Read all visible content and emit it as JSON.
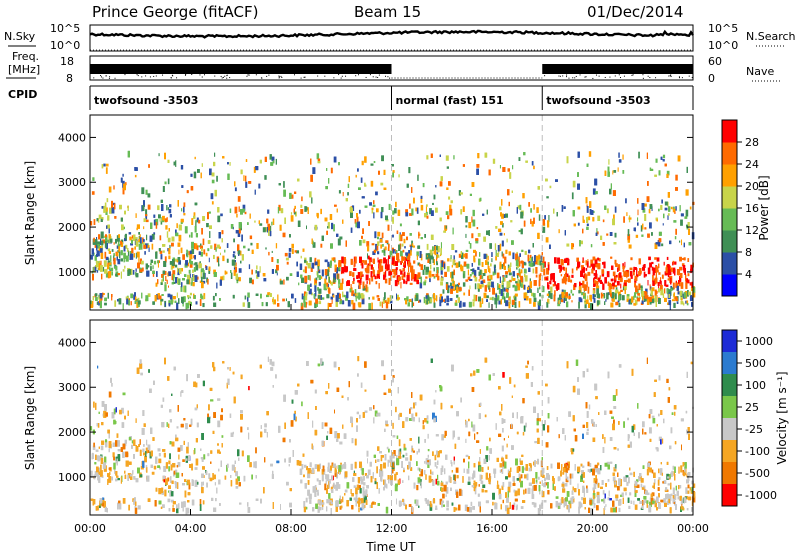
{
  "header": {
    "station": "Prince George (fitACF)",
    "beam": "Beam 15",
    "date": "01/Dec/2014"
  },
  "top_panels": {
    "nsky_label": "N.Sky",
    "nsearch_label": "N.Search",
    "freq_label_1": "Freq.",
    "freq_label_2": "[MHz]",
    "nave_label": "Nave",
    "cpid_label": "CPID",
    "noise_left_ticks": [
      "10^5",
      "10^0"
    ],
    "noise_right_ticks": [
      "10^5",
      "10^0"
    ],
    "freq_left_ticks": [
      "18",
      "8"
    ],
    "freq_right_ticks": [
      "60",
      "0"
    ],
    "cpid_segments": [
      {
        "label": "twofsound -3503",
        "start_hour": 0,
        "end_hour": 12
      },
      {
        "label": "normal (fast) 151",
        "start_hour": 12,
        "end_hour": 18
      },
      {
        "label": "twofsound -3503",
        "start_hour": 18,
        "end_hour": 24
      }
    ]
  },
  "colors": {
    "power": [
      "#0000ff",
      "#2b4fa6",
      "#3f8f55",
      "#66bb55",
      "#c8d44a",
      "#ffa000",
      "#ff6a00",
      "#ff0000"
    ],
    "velocity": [
      "#1d2bd6",
      "#2b7bd0",
      "#2f8c4d",
      "#7ac74a",
      "#c8c8c8",
      "#f5a623",
      "#f07800",
      "#ff0000"
    ]
  },
  "chart_data": [
    {
      "type": "heatmap",
      "title": "",
      "xlabel": "",
      "ylabel": "Slant Range [km]",
      "x_unit": "hour UT",
      "xlim": [
        0,
        24
      ],
      "ylim": [
        150,
        4500
      ],
      "y_ticks": [
        "1000",
        "2000",
        "3000",
        "4000"
      ],
      "colorbar": {
        "label": "Power [dB]",
        "ticks": [
          "4",
          "8",
          "12",
          "16",
          "20",
          "24",
          "28"
        ],
        "range": [
          0,
          30
        ]
      }
    },
    {
      "type": "heatmap",
      "title": "",
      "xlabel": "Time UT",
      "ylabel": "Slant Range [km]",
      "x_ticks": [
        "00:00",
        "04:00",
        "08:00",
        "12:00",
        "16:00",
        "20:00",
        "00:00"
      ],
      "xlim": [
        0,
        24
      ],
      "ylim": [
        150,
        4500
      ],
      "y_ticks": [
        "1000",
        "2000",
        "3000",
        "4000"
      ],
      "colorbar": {
        "label": "Velocity [m s⁻¹]",
        "ticks": [
          "1000",
          "500",
          "100",
          "25",
          "-25",
          "-100",
          "-500",
          "-1000"
        ]
      }
    }
  ]
}
